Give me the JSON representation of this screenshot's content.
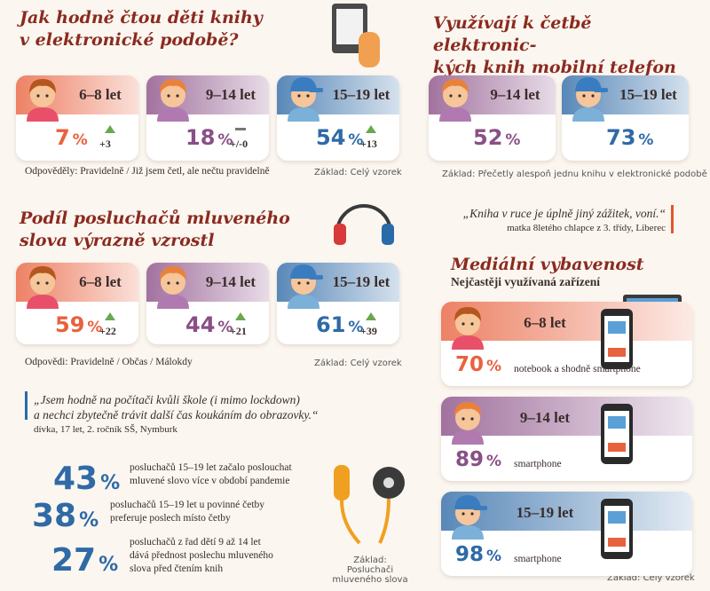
{
  "ebook": {
    "title": "Jak hodně čtou děti knihy\nv elektronické podobě?",
    "cards": [
      {
        "age": "6–8 let",
        "value": "7",
        "unit": "%",
        "change": "+3",
        "trend": "up",
        "color": "#e8623e"
      },
      {
        "age": "9–14 let",
        "value": "18",
        "unit": "%",
        "change": "+/-0",
        "trend": "flat",
        "color": "#8a4f86"
      },
      {
        "age": "15–19 let",
        "value": "54",
        "unit": "%",
        "change": "+13",
        "trend": "up",
        "color": "#2f6aa6"
      }
    ],
    "footnote": "Odpověděly: Pravidelně / Již jsem četl, ale nečtu pravidelně",
    "base": "Základ: Celý vzorek"
  },
  "mobile": {
    "title": "Využívají k četbě elektronic-\nkých knih mobilní telefon",
    "cards": [
      {
        "age": "9–14 let",
        "value": "52",
        "unit": "%",
        "color": "#8a4f86"
      },
      {
        "age": "15–19 let",
        "value": "73",
        "unit": "%",
        "color": "#2f6aa6"
      }
    ],
    "base": "Základ: Přečetly alespoň jednu knihu v elektronické podobě"
  },
  "audio": {
    "title": "Podíl posluchačů mluveného\nslova výrazně vzrostl",
    "cards": [
      {
        "age": "6–8 let",
        "value": "59",
        "unit": "%",
        "change": "+22",
        "trend": "up",
        "color": "#e8623e"
      },
      {
        "age": "9–14 let",
        "value": "44",
        "unit": "%",
        "change": "+21",
        "trend": "up",
        "color": "#8a4f86"
      },
      {
        "age": "15–19 let",
        "value": "61",
        "unit": "%",
        "change": "+39",
        "trend": "up",
        "color": "#2f6aa6"
      }
    ],
    "footnote": "Odpovědi: Pravidelně / Občas / Málokdy",
    "base": "Základ: Celý vzorek"
  },
  "quote1": {
    "text": "„Kniha v ruce je úplně jiný zážitek, voní.“",
    "author": "matka 8letého chlapce z 3. třídy, Liberec"
  },
  "quote2": {
    "text": "„Jsem hodně na počítači kvůli škole (i mimo lockdown)\na nechci zbytečně trávit další čas koukáním do obrazovky.“",
    "author": "dívka, 17 let, 2. ročník SŠ, Nymburk"
  },
  "stats": {
    "items": [
      {
        "value": "43",
        "unit": "%",
        "text": "posluchačů 15–19 let začalo poslouchat\nmluvené slovo více v období pandemie"
      },
      {
        "value": "38",
        "unit": "%",
        "text": "posluchačů 15–19 let u povinné četby\npreferuje poslech místo četby"
      },
      {
        "value": "27",
        "unit": "%",
        "text": "posluchačů z řad dětí 9 až 14 let\ndává přednost poslechu mluveného\nslova před čtením knih"
      }
    ],
    "base": "Základ: Posluchači\nmluveného slova"
  },
  "devices": {
    "title": "Mediální vybavenost",
    "subtitle": "Nejčastěji využívaná zařízení",
    "cards": [
      {
        "age": "6–8 let",
        "value": "70",
        "unit": "%",
        "device": "notebook a shodně smartphone",
        "color": "#e8623e"
      },
      {
        "age": "9–14 let",
        "value": "89",
        "unit": "%",
        "device": "smartphone",
        "color": "#8a4f86"
      },
      {
        "age": "15–19 let",
        "value": "98",
        "unit": "%",
        "device": "smartphone",
        "color": "#2f6aa6"
      }
    ],
    "base": "Základ: Celý vzorek"
  }
}
